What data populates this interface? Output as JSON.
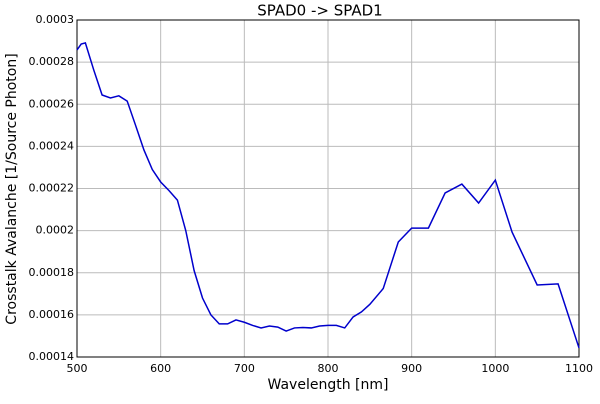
{
  "chart_data": {
    "type": "line",
    "title": "SPAD0 -> SPAD1",
    "xlabel": "Wavelength [nm]",
    "ylabel": "Crosstalk Avalanche [1/Source Photon]",
    "x": [
      500,
      505,
      510,
      520,
      530,
      540,
      550,
      560,
      570,
      580,
      590,
      600,
      610,
      620,
      630,
      640,
      650,
      660,
      670,
      680,
      690,
      700,
      710,
      720,
      730,
      740,
      750,
      760,
      770,
      780,
      790,
      800,
      810,
      820,
      830,
      840,
      850,
      866,
      884,
      900,
      920,
      940,
      960,
      980,
      1000,
      1020,
      1050,
      1075,
      1100
    ],
    "series": [
      {
        "name": "SPAD0 -> SPAD1",
        "color": "#0000cc",
        "values": [
          0.0002858,
          0.0002886,
          0.0002891,
          0.0002763,
          0.0002644,
          0.000263,
          0.000264,
          0.0002615,
          0.00025,
          0.0002383,
          0.000229,
          0.0002231,
          0.000219,
          0.0002145,
          0.0002,
          0.000181,
          0.000168,
          0.00016,
          0.0001557,
          0.0001557,
          0.0001576,
          0.0001565,
          0.000155,
          0.0001538,
          0.0001547,
          0.0001542,
          0.0001523,
          0.0001538,
          0.000154,
          0.0001538,
          0.0001547,
          0.000155,
          0.000155,
          0.0001538,
          0.000159,
          0.0001614,
          0.000165,
          0.0001725,
          0.0001946,
          0.0002012,
          0.0002012,
          0.0002179,
          0.0002221,
          0.0002131,
          0.000224,
          0.0001993,
          0.0001742,
          0.0001747,
          0.0001443
        ]
      }
    ],
    "xlim": [
      500,
      1100
    ],
    "xticks": [
      500,
      600,
      700,
      800,
      900,
      1000,
      1100
    ],
    "ylim": [
      0.00014,
      0.0003
    ],
    "yticks": [
      0.00014,
      0.00016,
      0.00018,
      0.0002,
      0.00022,
      0.00024,
      0.00026,
      0.00028,
      0.0003
    ],
    "grid": true
  }
}
